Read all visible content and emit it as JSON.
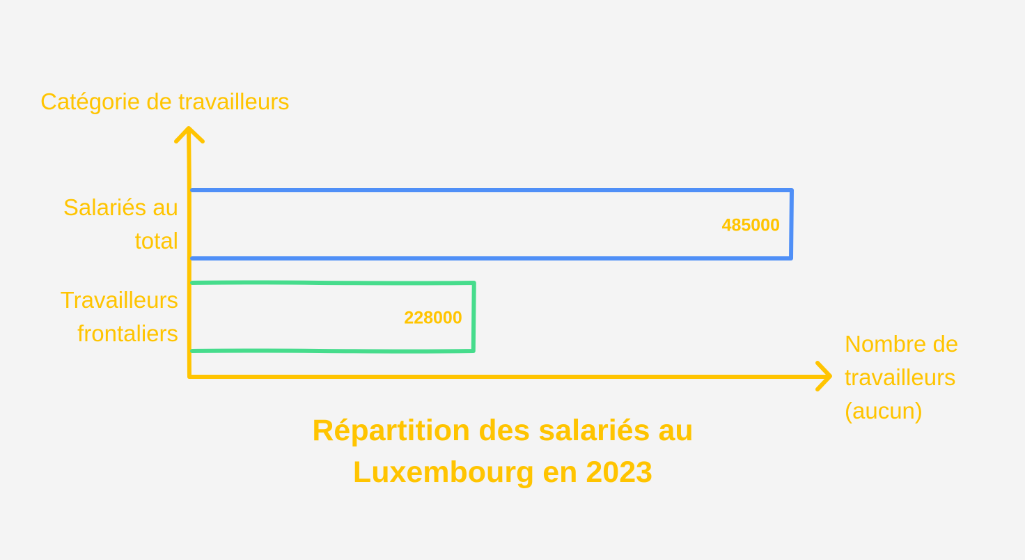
{
  "chart_data": {
    "type": "bar",
    "orientation": "horizontal",
    "title": "Répartition des salariés au Luxembourg en 2023",
    "y_label": "Catégorie de travailleurs",
    "x_label": "Nombre de travailleurs (aucun)",
    "categories": [
      "Salariés au total",
      "Travailleurs frontaliers"
    ],
    "values": [
      485000,
      228000
    ],
    "colors": [
      "#4f8ff7",
      "#46dc8c"
    ],
    "text_color": "#ffc400"
  }
}
